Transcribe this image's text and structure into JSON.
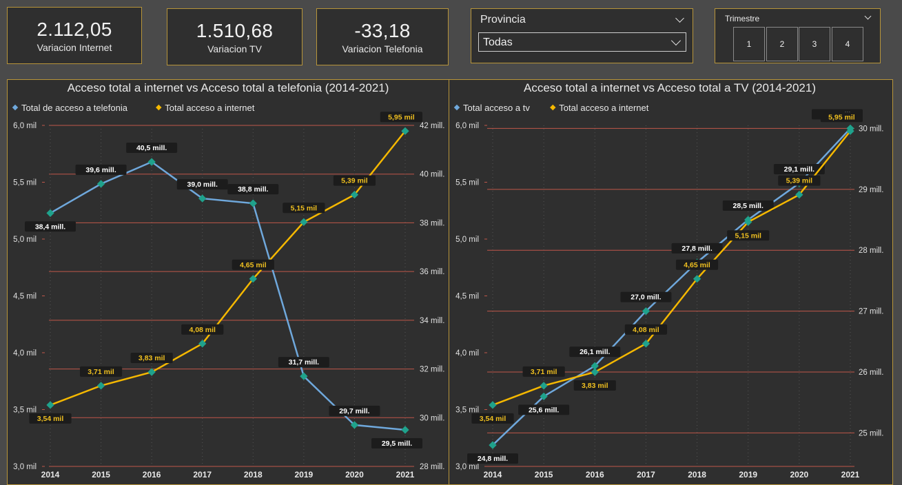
{
  "kpis": [
    {
      "value": "2.112,05",
      "label": "Variacion Internet"
    },
    {
      "value": "1.510,68",
      "label": "Variacion TV"
    },
    {
      "value": "-33,18",
      "label": "Variacion Telefonia"
    }
  ],
  "provincia": {
    "title": "Provincia",
    "selected": "Todas"
  },
  "trimestre": {
    "title": "Trimestre",
    "options": [
      "1",
      "2",
      "3",
      "4"
    ]
  },
  "colors": {
    "blue": "#6fa8dc",
    "orange": "#f5b800",
    "marker": "#1fa28c",
    "grid": "#c0574a",
    "label": "#f0c020"
  },
  "chart_data": [
    {
      "type": "line",
      "title": "Acceso total a internet vs Acceso total a telefonia (2014-2021)",
      "categories": [
        "2014",
        "2015",
        "2016",
        "2017",
        "2018",
        "2019",
        "2020",
        "2021"
      ],
      "legend_position": "top-left",
      "left_axis": {
        "ticks": [
          "3,0 mil",
          "3,5 mil",
          "4,0 mil",
          "4,5 mil",
          "5,0 mil",
          "5,5 mil",
          "6,0 mil"
        ],
        "range": [
          3.0,
          6.0
        ]
      },
      "right_axis": {
        "ticks": [
          "28 mill.",
          "30 mill.",
          "32 mill.",
          "34 mill.",
          "36 mill.",
          "38 mill.",
          "40 mill.",
          "42 mill."
        ],
        "range": [
          28,
          42
        ]
      },
      "series": [
        {
          "name": "Total de acceso a telefonia",
          "color": "#6fa8dc",
          "axis": "right",
          "values": [
            38.4,
            39.6,
            40.5,
            39.0,
            38.8,
            31.7,
            29.7,
            29.5
          ],
          "labels": [
            "38,4 mill.",
            "39,6 mill.",
            "40,5 mill.",
            "39,0 mill.",
            "38,8 mill.",
            "31,7 mill.",
            "29,7 mill.",
            "29,5 mill."
          ],
          "label_pos": [
            "below",
            "above",
            "above",
            "above",
            "above",
            "above",
            "above",
            "below"
          ]
        },
        {
          "name": "Total acceso a internet",
          "color": "#f5b800",
          "axis": "left",
          "values": [
            3.54,
            3.71,
            3.83,
            4.08,
            4.65,
            5.15,
            5.39,
            5.95
          ],
          "labels": [
            "3,54 mil",
            "3,71 mil",
            "3,83 mil",
            "4,08 mil",
            "4,65 mil",
            "5,15 mil",
            "5,39 mil",
            "5,95 mil"
          ],
          "label_pos": [
            "below",
            "above",
            "above",
            "above",
            "above",
            "above",
            "above",
            "above"
          ]
        }
      ]
    },
    {
      "type": "line",
      "title": "Acceso total a internet vs Acceso total a TV (2014-2021)",
      "categories": [
        "2014",
        "2015",
        "2016",
        "2017",
        "2018",
        "2019",
        "2020",
        "2021"
      ],
      "legend_position": "top-left",
      "left_axis": {
        "ticks": [
          "3,0 mil",
          "3,5 mil",
          "4,0 mil",
          "4,5 mil",
          "5,0 mil",
          "5,5 mil",
          "6,0 mil"
        ],
        "range": [
          3.0,
          6.0
        ]
      },
      "right_axis": {
        "ticks": [
          "25 mill.",
          "26 mill.",
          "27 mill.",
          "28 mill.",
          "29 mill.",
          "30 mill."
        ],
        "range": [
          24.45,
          30.05
        ]
      },
      "series": [
        {
          "name": "Total acceso a tv",
          "color": "#6fa8dc",
          "axis": "right",
          "values": [
            24.8,
            25.6,
            26.1,
            27.0,
            27.8,
            28.5,
            29.1,
            30.0
          ],
          "labels": [
            "24,8 mill.",
            "25,6 mill.",
            "26,1 mill.",
            "27,0 mill.",
            "27,8 mill.",
            "28,5 mill.",
            "29,1 mill.",
            "30,0 mill."
          ],
          "label_pos": [
            "below",
            "below",
            "above",
            "above",
            "above",
            "above",
            "above",
            "above"
          ]
        },
        {
          "name": "Total acceso a internet",
          "color": "#f5b800",
          "axis": "left",
          "values": [
            3.54,
            3.71,
            3.83,
            4.08,
            4.65,
            5.15,
            5.39,
            5.95
          ],
          "labels": [
            "3,54 mil",
            "3,71 mil",
            "3,83 mil",
            "4,08 mil",
            "4,65 mil",
            "5,15 mil",
            "5,39 mil",
            "5,95 mil"
          ],
          "label_pos": [
            "below",
            "above",
            "below",
            "above",
            "above",
            "below",
            "above",
            "above"
          ]
        }
      ]
    }
  ]
}
